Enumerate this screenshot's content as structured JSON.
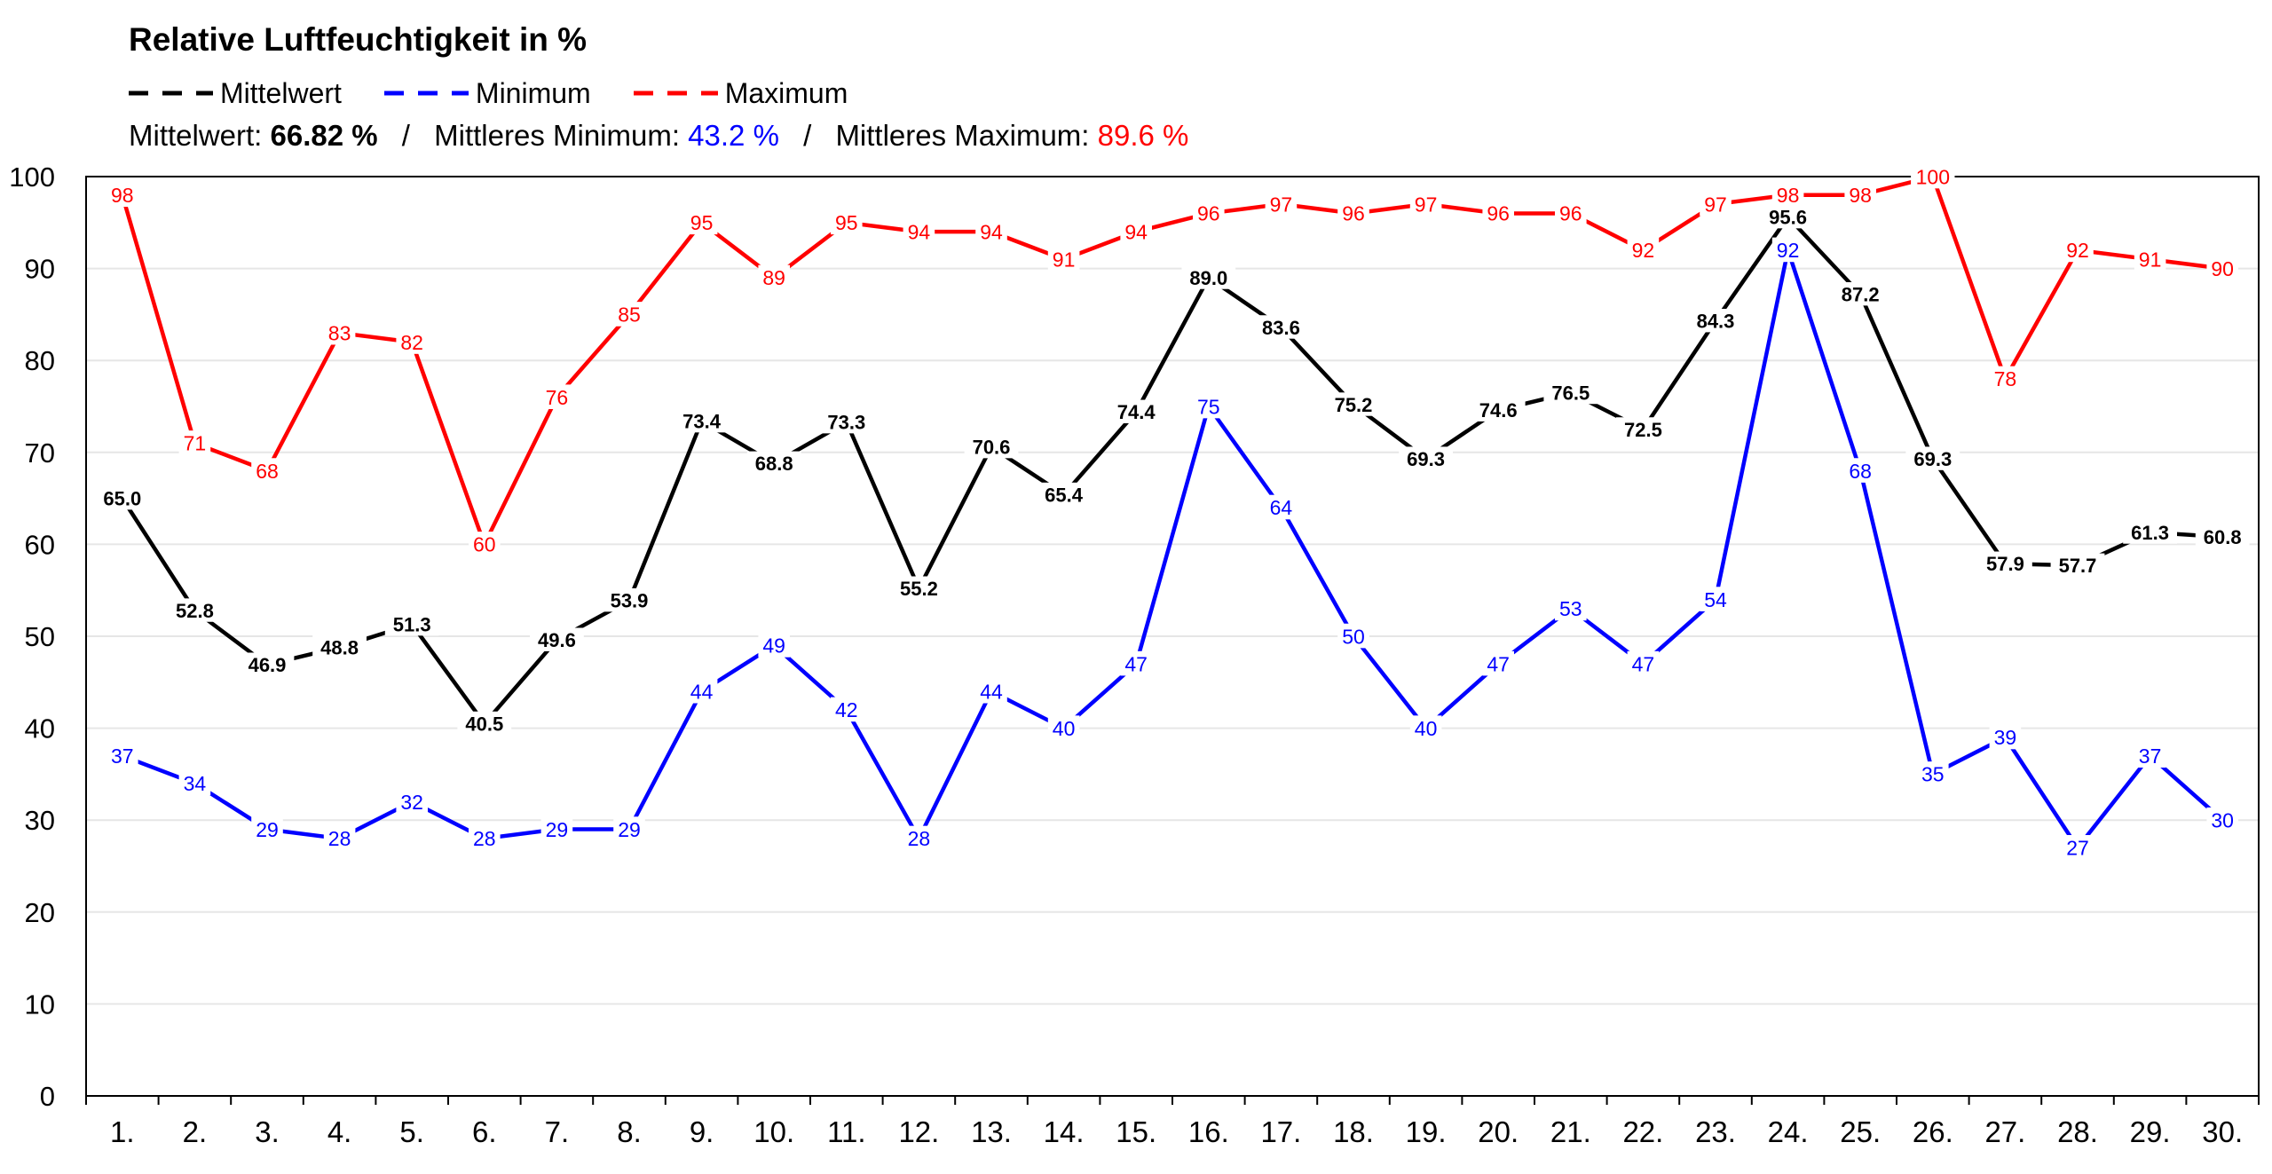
{
  "title": "Relative Luftfeuchtigkeit in %",
  "legend": [
    {
      "name": "Mittelwert",
      "color": "#000000"
    },
    {
      "name": "Minimum",
      "color": "#0000FF"
    },
    {
      "name": "Maximum",
      "color": "#FF0000"
    }
  ],
  "summary": {
    "mean_label": "Mittelwert:",
    "mean_value": "66.82 %",
    "sep1": "/",
    "min_label": "Mittleres Minimum:",
    "min_value": "43.2 %",
    "sep2": "/",
    "max_label": "Mittleres Maximum:",
    "max_value": "89.6 %"
  },
  "chart_data": {
    "type": "line",
    "title": "Relative Luftfeuchtigkeit in %",
    "xlabel": "",
    "ylabel": "",
    "ylim": [
      0,
      100
    ],
    "yticks": [
      "0",
      "10",
      "20",
      "30",
      "40",
      "50",
      "60",
      "70",
      "80",
      "90",
      "100"
    ],
    "grid": true,
    "legend_position": "top-left",
    "categories": [
      "1.",
      "2.",
      "3.",
      "4.",
      "5.",
      "6.",
      "7.",
      "8.",
      "9.",
      "10.",
      "11.",
      "12.",
      "13.",
      "14.",
      "15.",
      "16.",
      "17.",
      "18.",
      "19.",
      "20.",
      "21.",
      "22.",
      "23.",
      "24.",
      "25.",
      "26.",
      "27.",
      "28.",
      "29.",
      "30."
    ],
    "series": [
      {
        "name": "Mittelwert",
        "color": "#000000",
        "bold_labels": true,
        "values": [
          65.0,
          52.8,
          46.9,
          48.8,
          51.3,
          40.5,
          49.6,
          53.9,
          73.4,
          68.8,
          73.3,
          55.2,
          70.6,
          65.4,
          74.4,
          89.0,
          83.6,
          75.2,
          69.3,
          74.6,
          76.5,
          72.5,
          84.3,
          95.6,
          87.2,
          69.3,
          57.9,
          57.7,
          61.3,
          60.8
        ],
        "labels": [
          "65.0",
          "52.8",
          "46.9",
          "48.8",
          "51.3",
          "40.5",
          "49.6",
          "53.9",
          "73.4",
          "68.8",
          "73.3",
          "55.2",
          "70.6",
          "65.4",
          "74.4",
          "89.0",
          "83.6",
          "75.2",
          "69.3",
          "74.6",
          "76.5",
          "72.5",
          "84.3",
          "95.6",
          "87.2",
          "69.3",
          "57.9",
          "57.7",
          "61.3",
          "60.8"
        ]
      },
      {
        "name": "Minimum",
        "color": "#0000FF",
        "bold_labels": false,
        "values": [
          37,
          34,
          29,
          28,
          32,
          28,
          29,
          29,
          44,
          49,
          42,
          28,
          44,
          40,
          47,
          75,
          64,
          50,
          40,
          47,
          53,
          47,
          54,
          92,
          68,
          35,
          39,
          27,
          37,
          30
        ],
        "labels": [
          "37",
          "34",
          "29",
          "28",
          "32",
          "28",
          "29",
          "29",
          "44",
          "49",
          "42",
          "28",
          "44",
          "40",
          "47",
          "75",
          "64",
          "50",
          "40",
          "47",
          "53",
          "47",
          "54",
          "92",
          "68",
          "35",
          "39",
          "27",
          "37",
          "30"
        ]
      },
      {
        "name": "Maximum",
        "color": "#FF0000",
        "bold_labels": false,
        "values": [
          98,
          71,
          68,
          83,
          82,
          60,
          76,
          85,
          95,
          89,
          95,
          94,
          94,
          91,
          94,
          96,
          97,
          96,
          97,
          96,
          96,
          92,
          97,
          98,
          98,
          100,
          78,
          92,
          91,
          90
        ],
        "labels": [
          "98",
          "71",
          "68",
          "83",
          "82",
          "60",
          "76",
          "85",
          "95",
          "89",
          "95",
          "94",
          "94",
          "91",
          "94",
          "96",
          "97",
          "96",
          "97",
          "96",
          "96",
          "92",
          "97",
          "98",
          "98",
          "100",
          "78",
          "92",
          "91",
          "90"
        ]
      }
    ]
  }
}
